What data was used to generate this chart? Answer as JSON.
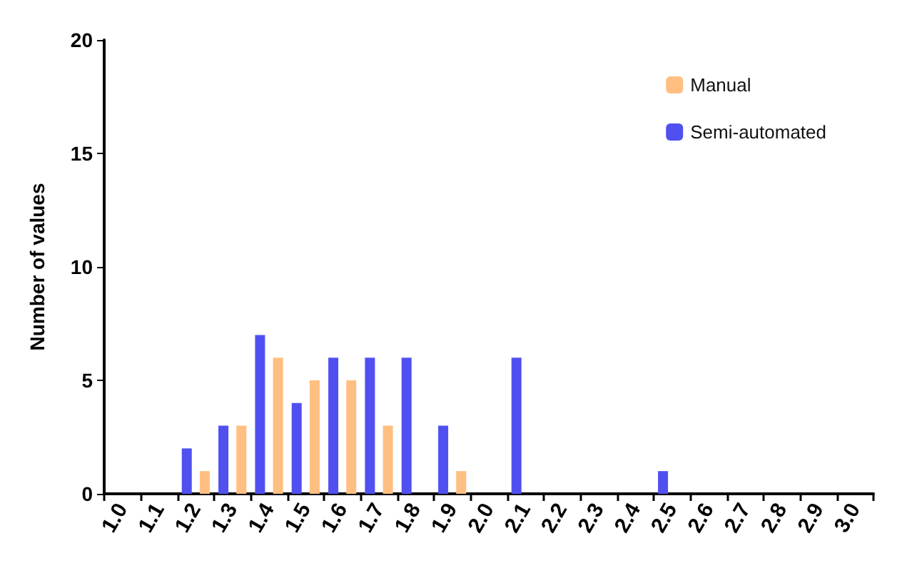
{
  "chart_data": {
    "type": "bar",
    "ylabel": "Number of values",
    "categories": [
      "1.0",
      "1.1",
      "1.2",
      "1.3",
      "1.4",
      "1.5",
      "1.6",
      "1.7",
      "1.8",
      "1.9",
      "2.0",
      "2.1",
      "2.2",
      "2.3",
      "2.4",
      "2.5",
      "2.6",
      "2.7",
      "2.8",
      "2.9",
      "3.0"
    ],
    "series": [
      {
        "name": "Semi-automated",
        "color": "#5050f0",
        "values": [
          null,
          null,
          2,
          3,
          7,
          4,
          6,
          6,
          6,
          3,
          null,
          6,
          null,
          null,
          null,
          1,
          null,
          null,
          null,
          null,
          null
        ]
      },
      {
        "name": "Manual",
        "color": "#ffbf80",
        "values": [
          null,
          null,
          1,
          3,
          6,
          5,
          5,
          3,
          null,
          1,
          null,
          null,
          null,
          null,
          null,
          null,
          null,
          null,
          null,
          null,
          null
        ]
      }
    ],
    "ylim": [
      0,
      20
    ],
    "yticks": [
      0,
      5,
      10,
      15,
      20
    ],
    "grid": false,
    "legend": "top right"
  }
}
